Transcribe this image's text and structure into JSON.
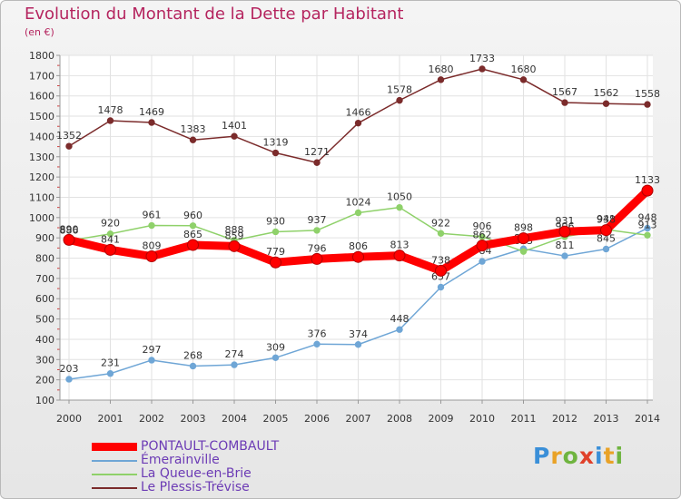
{
  "title": "Evolution du Montant de la Dette par Habitant",
  "subtitle": "(en €)",
  "logo_text": "Proxiti",
  "chart_data": {
    "type": "line",
    "title": "Evolution du Montant de la Dette par Habitant",
    "subtitle": "(en €)",
    "xlabel": "",
    "ylabel": "",
    "ylim": [
      100,
      1800
    ],
    "yticks": [
      100,
      200,
      300,
      400,
      500,
      600,
      700,
      800,
      900,
      1000,
      1100,
      1200,
      1300,
      1400,
      1500,
      1600,
      1700,
      1800
    ],
    "x": [
      "2000",
      "2001",
      "2002",
      "2003",
      "2004",
      "2005",
      "2006",
      "2007",
      "2008",
      "2009",
      "2010",
      "2011",
      "2012",
      "2013",
      "2014"
    ],
    "grid": true,
    "legend_position": "bottom-left",
    "series": [
      {
        "name": "Le Plessis-Trévise",
        "color": "#7b2b2b",
        "values": [
          1352,
          1478,
          1469,
          1383,
          1401,
          1319,
          1271,
          1466,
          1578,
          1680,
          1733,
          1680,
          1567,
          1562,
          1558
        ]
      },
      {
        "name": "Émerainville",
        "color": "#6fa6d6",
        "values": [
          203,
          231,
          297,
          268,
          274,
          309,
          376,
          374,
          448,
          657,
          784,
          846,
          811,
          845,
          948
        ]
      },
      {
        "name": "La Queue-en-Brie",
        "color": "#8fd16a",
        "values": [
          886,
          920,
          961,
          960,
          888,
          930,
          937,
          1024,
          1050,
          922,
          906,
          833,
          906,
          941,
          913
        ]
      },
      {
        "name": "PONTAULT-COMBAULT",
        "color": "#ff0000",
        "values": [
          890,
          841,
          809,
          865,
          859,
          779,
          796,
          806,
          813,
          738,
          862,
          898,
          931,
          938,
          1133
        ]
      }
    ]
  }
}
